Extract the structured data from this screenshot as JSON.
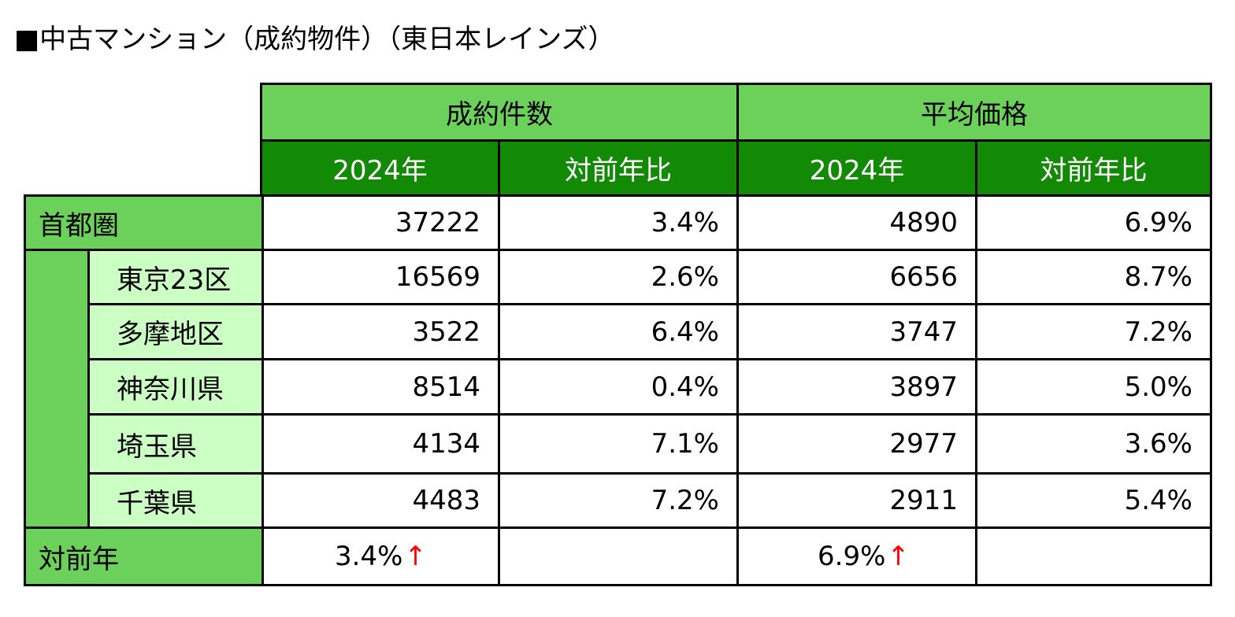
{
  "title": "■中古マンション（成約物件）（東日本レインズ）",
  "columns": {
    "group1": "成約件数",
    "group2": "平均価格",
    "sub": [
      "2024年",
      "対前年比",
      "2024年",
      "対前年比"
    ]
  },
  "rows": [
    {
      "label": "首都圏",
      "values": [
        "37222",
        "3.4%",
        "4890",
        "6.9%"
      ]
    },
    {
      "label": "東京23区",
      "values": [
        "16569",
        "2.6%",
        "6656",
        "8.7%"
      ]
    },
    {
      "label": "多摩地区",
      "values": [
        "3522",
        "6.4%",
        "3747",
        "7.2%"
      ]
    },
    {
      "label": "神奈川県",
      "values": [
        "8514",
        "0.4%",
        "3897",
        "5.0%"
      ]
    },
    {
      "label": "埼玉県",
      "values": [
        "4134",
        "7.1%",
        "2977",
        "3.6%"
      ]
    },
    {
      "label": "千葉県",
      "values": [
        "4483",
        "7.2%",
        "2911",
        "5.4%"
      ]
    }
  ],
  "yoy": {
    "label": "対前年",
    "count": "3.4%",
    "price": "6.9%",
    "arrow": "↑"
  },
  "colors": {
    "header_light": "#6bd15b",
    "header_dark": "#128a06",
    "subregion": "#ccffc4",
    "arrow": "#ff0000"
  }
}
